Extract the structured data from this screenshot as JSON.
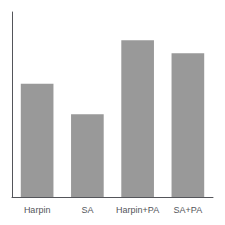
{
  "chart_data": {
    "type": "bar",
    "categories": [
      "Harpin",
      "SA",
      "Harpin+PA",
      "SA+PA"
    ],
    "values": [
      52,
      38,
      72,
      66
    ],
    "color": "#999999",
    "ylim": [
      0,
      85
    ],
    "grid": false,
    "tick_labels": "x"
  }
}
